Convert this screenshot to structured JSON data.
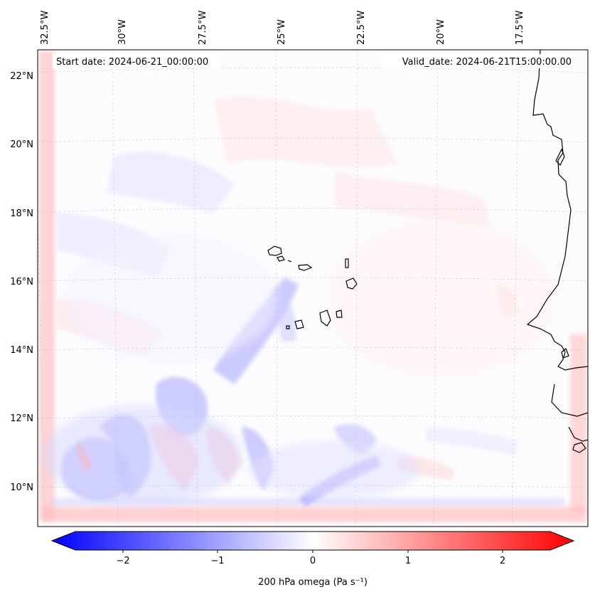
{
  "map": {
    "start_label": "Start date: 2024-06-21_00:00:00",
    "valid_label": "Valid_date: 2024-06-21T15:00:00.00",
    "lon_ticks": [
      "32.5°W",
      "30°W",
      "27.5°W",
      "25°W",
      "22.5°W",
      "20°W",
      "17.5°W"
    ],
    "lat_ticks": [
      "22°N",
      "20°N",
      "18°N",
      "16°N",
      "14°N",
      "12°N",
      "10°N"
    ],
    "lon_range": [
      -32.7,
      -15.3
    ],
    "lat_range": [
      8.9,
      22.8
    ],
    "field": "200 hPa omega",
    "grid": "dashed gray"
  },
  "colorbar": {
    "label": "200 hPa omega (Pa s⁻¹)",
    "ticks": [
      "−2",
      "−1",
      "0",
      "1",
      "2"
    ],
    "tick_values": [
      -2,
      -1,
      0,
      1,
      2
    ],
    "range": [
      -2.5,
      2.5
    ],
    "cmap": "bwr",
    "extend": "both",
    "colors": {
      "negative": "#0000ff",
      "zero": "#ffffff",
      "positive": "#ff0000"
    }
  }
}
